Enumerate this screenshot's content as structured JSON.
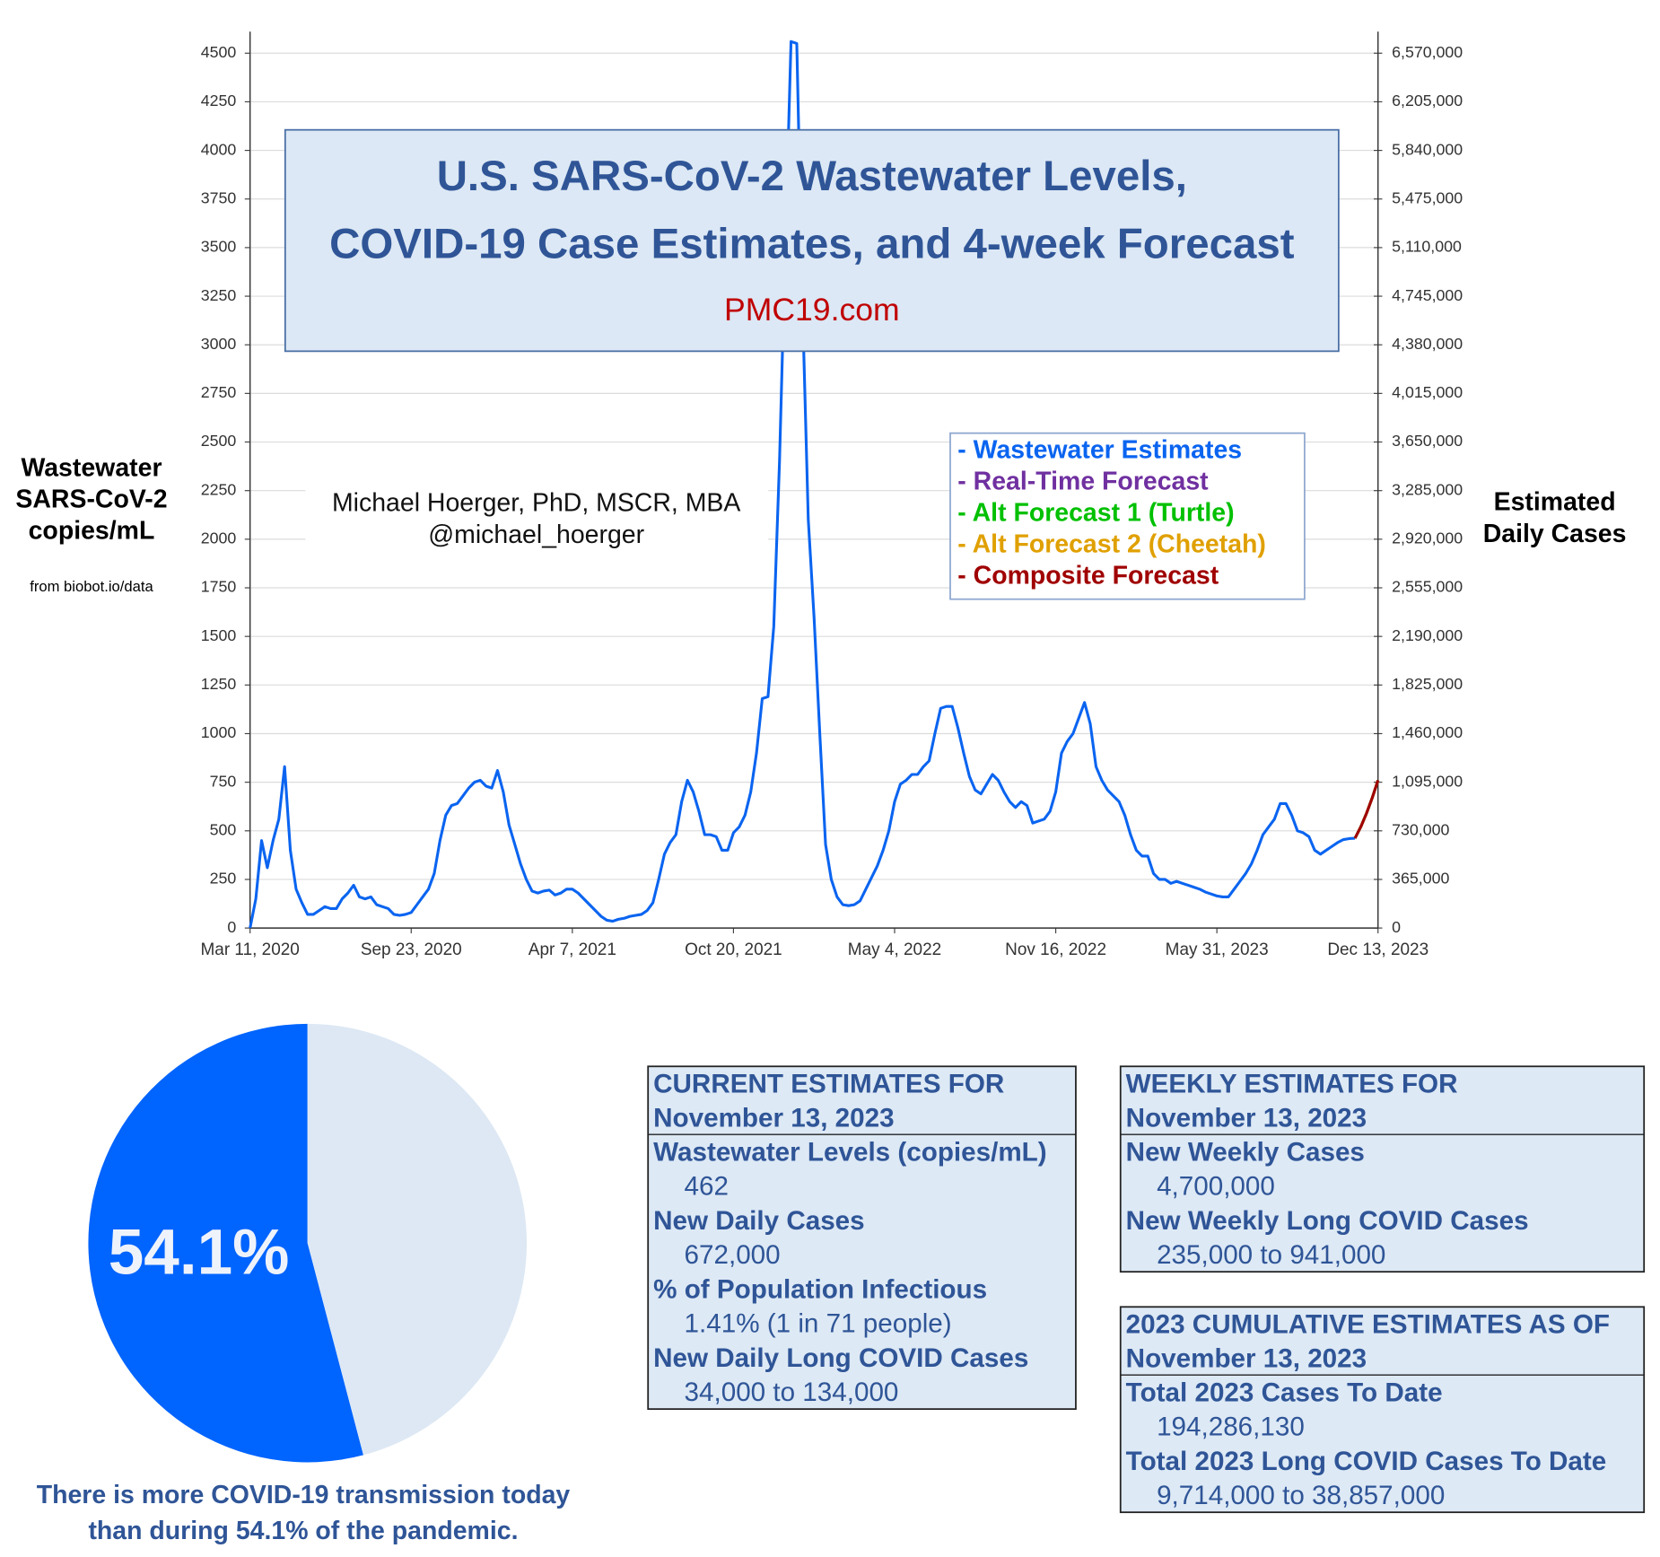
{
  "chart_data": [
    {
      "type": "line",
      "title": [
        "U.S. SARS-CoV-2 Wastewater Levels,",
        "COVID-19 Case Estimates, and 4-week Forecast"
      ],
      "subtitle": "PMC19.com",
      "y_label": [
        "Wastewater",
        "SARS-CoV-2",
        "copies/mL"
      ],
      "y2_label": [
        "Estimated",
        "Daily Cases"
      ],
      "source": "from biobot.io/data",
      "author": [
        "Michael Hoerger, PhD, MSCR, MBA",
        "@michael_hoerger"
      ],
      "x": [
        "2020-03-11",
        "2020-03-18",
        "2020-03-25",
        "2020-04-01",
        "2020-04-08",
        "2020-04-15",
        "2020-04-22",
        "2020-04-29",
        "2020-05-06",
        "2020-05-13",
        "2020-05-20",
        "2020-05-27",
        "2020-06-03",
        "2020-06-10",
        "2020-06-17",
        "2020-06-24",
        "2020-07-01",
        "2020-07-08",
        "2020-07-15",
        "2020-07-22",
        "2020-07-29",
        "2020-08-05",
        "2020-08-12",
        "2020-08-19",
        "2020-08-26",
        "2020-09-02",
        "2020-09-09",
        "2020-09-16",
        "2020-09-23",
        "2020-09-30",
        "2020-10-07",
        "2020-10-14",
        "2020-10-21",
        "2020-10-28",
        "2020-11-04",
        "2020-11-11",
        "2020-11-18",
        "2020-11-25",
        "2020-12-02",
        "2020-12-09",
        "2020-12-16",
        "2020-12-23",
        "2020-12-30",
        "2021-01-06",
        "2021-01-13",
        "2021-01-20",
        "2021-01-27",
        "2021-02-03",
        "2021-02-10",
        "2021-02-17",
        "2021-02-24",
        "2021-03-03",
        "2021-03-10",
        "2021-03-17",
        "2021-03-24",
        "2021-03-31",
        "2021-04-07",
        "2021-04-14",
        "2021-04-21",
        "2021-04-28",
        "2021-05-05",
        "2021-05-12",
        "2021-05-19",
        "2021-05-26",
        "2021-06-02",
        "2021-06-09",
        "2021-06-16",
        "2021-06-23",
        "2021-06-30",
        "2021-07-07",
        "2021-07-14",
        "2021-07-21",
        "2021-07-28",
        "2021-08-04",
        "2021-08-11",
        "2021-08-18",
        "2021-08-25",
        "2021-09-01",
        "2021-09-08",
        "2021-09-15",
        "2021-09-22",
        "2021-09-29",
        "2021-10-06",
        "2021-10-13",
        "2021-10-20",
        "2021-10-27",
        "2021-11-03",
        "2021-11-10",
        "2021-11-17",
        "2021-11-24",
        "2021-12-01",
        "2021-12-08",
        "2021-12-15",
        "2021-12-22",
        "2021-12-29",
        "2022-01-05",
        "2022-01-12",
        "2022-01-19",
        "2022-01-26",
        "2022-02-02",
        "2022-02-09",
        "2022-02-16",
        "2022-02-23",
        "2022-03-02",
        "2022-03-09",
        "2022-03-16",
        "2022-03-23",
        "2022-03-30",
        "2022-04-06",
        "2022-04-13",
        "2022-04-20",
        "2022-04-27",
        "2022-05-04",
        "2022-05-11",
        "2022-05-18",
        "2022-05-25",
        "2022-06-01",
        "2022-06-08",
        "2022-06-15",
        "2022-06-22",
        "2022-06-29",
        "2022-07-06",
        "2022-07-13",
        "2022-07-20",
        "2022-07-27",
        "2022-08-03",
        "2022-08-10",
        "2022-08-17",
        "2022-08-24",
        "2022-08-31",
        "2022-09-07",
        "2022-09-14",
        "2022-09-21",
        "2022-09-28",
        "2022-10-05",
        "2022-10-12",
        "2022-10-19",
        "2022-10-26",
        "2022-11-02",
        "2022-11-09",
        "2022-11-16",
        "2022-11-23",
        "2022-11-30",
        "2022-12-07",
        "2022-12-14",
        "2022-12-21",
        "2022-12-28",
        "2023-01-04",
        "2023-01-11",
        "2023-01-18",
        "2023-01-25",
        "2023-02-01",
        "2023-02-08",
        "2023-02-15",
        "2023-02-22",
        "2023-03-01",
        "2023-03-08",
        "2023-03-15",
        "2023-03-22",
        "2023-03-29",
        "2023-04-05",
        "2023-04-12",
        "2023-04-19",
        "2023-04-26",
        "2023-05-03",
        "2023-05-10",
        "2023-05-17",
        "2023-05-24",
        "2023-05-31",
        "2023-06-07",
        "2023-06-14",
        "2023-06-21",
        "2023-06-28",
        "2023-07-05",
        "2023-07-12",
        "2023-07-19",
        "2023-07-26",
        "2023-08-02",
        "2023-08-09",
        "2023-08-16",
        "2023-08-23",
        "2023-08-30",
        "2023-09-06",
        "2023-09-13",
        "2023-09-20",
        "2023-09-27",
        "2023-10-04",
        "2023-10-11",
        "2023-10-18",
        "2023-10-25",
        "2023-11-01",
        "2023-11-08",
        "2023-11-15",
        "2023-11-22",
        "2023-11-29",
        "2023-12-06",
        "2023-12-13"
      ],
      "series": [
        {
          "name": "- Wastewater Estimates",
          "color": "#0a64f0",
          "values": [
            0,
            150,
            450,
            310,
            450,
            560,
            830,
            400,
            200,
            130,
            70,
            70,
            90,
            110,
            100,
            100,
            150,
            180,
            220,
            160,
            150,
            160,
            120,
            110,
            100,
            70,
            65,
            70,
            80,
            120,
            160,
            200,
            280,
            450,
            580,
            630,
            640,
            680,
            720,
            750,
            760,
            730,
            720,
            810,
            700,
            530,
            430,
            330,
            250,
            190,
            180,
            190,
            195,
            170,
            180,
            200,
            200,
            180,
            150,
            120,
            90,
            60,
            40,
            35,
            45,
            50,
            60,
            65,
            70,
            90,
            130,
            250,
            380,
            440,
            480,
            650,
            760,
            700,
            600,
            480,
            480,
            470,
            400,
            400,
            490,
            520,
            580,
            700,
            900,
            1180,
            1190,
            1550,
            2400,
            3500,
            4560,
            4550,
            3200,
            2100,
            1600,
            1000,
            430,
            250,
            160,
            120,
            115,
            120,
            140,
            200,
            260,
            320,
            400,
            500,
            650,
            740,
            760,
            790,
            790,
            830,
            860,
            1000,
            1130,
            1140,
            1140,
            1030,
            900,
            780,
            710,
            690,
            740,
            790,
            760,
            700,
            650,
            620,
            650,
            630,
            540,
            550,
            560,
            600,
            700,
            900,
            960,
            1000,
            1080,
            1160,
            1050,
            830,
            760,
            710,
            680,
            650,
            580,
            480,
            400,
            370,
            370,
            280,
            250,
            250,
            230,
            240,
            230,
            220,
            210,
            200,
            185,
            175,
            165,
            160,
            160,
            200,
            240,
            280,
            330,
            400,
            480,
            520,
            560,
            640,
            640,
            580,
            500,
            490,
            470,
            400,
            380,
            400,
            420,
            440,
            455,
            460,
            462,
            null,
            null,
            null,
            null
          ]
        },
        {
          "name": "- Real-Time Forecast",
          "color": "#7030a0",
          "x": [
            "2023-11-15",
            "2023-11-22",
            "2023-11-29",
            "2023-12-06",
            "2023-12-13"
          ],
          "values": [
            462,
            520,
            590,
            670,
            760
          ]
        },
        {
          "name": "- Alt Forecast 1 (Turtle)",
          "color": "#00c000",
          "x": [
            "2023-11-15",
            "2023-11-22",
            "2023-11-29",
            "2023-12-06",
            "2023-12-13"
          ],
          "values": [
            462,
            520,
            590,
            670,
            760
          ]
        },
        {
          "name": "- Alt Forecast 2 (Cheetah)",
          "color": "#e0a000",
          "x": [
            "2023-11-15",
            "2023-11-22",
            "2023-11-29",
            "2023-12-06",
            "2023-12-13"
          ],
          "values": [
            462,
            520,
            590,
            670,
            760
          ]
        },
        {
          "name": "- Composite Forecast",
          "color": "#a00000",
          "x": [
            "2023-11-15",
            "2023-11-22",
            "2023-11-29",
            "2023-12-06",
            "2023-12-13"
          ],
          "values": [
            462,
            520,
            590,
            670,
            760
          ]
        }
      ],
      "xlim": [
        "2020-03-11",
        "2023-12-13"
      ],
      "xticks": [
        {
          "value": "2020-03-11",
          "label": "Mar 11, 2020"
        },
        {
          "value": "2020-09-23",
          "label": "Sep 23, 2020"
        },
        {
          "value": "2021-04-07",
          "label": "Apr 7, 2021"
        },
        {
          "value": "2021-10-20",
          "label": "Oct 20, 2021"
        },
        {
          "value": "2022-05-04",
          "label": "May 4, 2022"
        },
        {
          "value": "2022-11-16",
          "label": "Nov 16, 2022"
        },
        {
          "value": "2023-05-31",
          "label": "May 31, 2023"
        },
        {
          "value": "2023-12-13",
          "label": "Dec 13, 2023"
        }
      ],
      "ylim": [
        0,
        4600
      ],
      "yticks": [
        0,
        250,
        500,
        750,
        1000,
        1250,
        1500,
        1750,
        2000,
        2250,
        2500,
        2750,
        3000,
        3250,
        3500,
        3750,
        4000,
        4250,
        4500
      ],
      "y2lim": [
        0,
        6716000
      ],
      "y2ticks": [
        0,
        {
          "value": 365000,
          "label": "365,000"
        },
        {
          "value": 730000,
          "label": "730,000"
        },
        {
          "value": 1095000,
          "label": "1,095,000"
        },
        {
          "value": 1460000,
          "label": "1,460,000"
        },
        {
          "value": 1825000,
          "label": "1,825,000"
        },
        {
          "value": 2190000,
          "label": "2,190,000"
        },
        {
          "value": 2555000,
          "label": "2,555,000"
        },
        {
          "value": 2920000,
          "label": "2,920,000"
        },
        {
          "value": 3285000,
          "label": "3,285,000"
        },
        {
          "value": 3650000,
          "label": "3,650,000"
        },
        {
          "value": 4015000,
          "label": "4,015,000"
        },
        {
          "value": 4380000,
          "label": "4,380,000"
        },
        {
          "value": 4745000,
          "label": "4,745,000"
        },
        {
          "value": 5110000,
          "label": "5,110,000"
        },
        {
          "value": 5475000,
          "label": "5,475,000"
        },
        {
          "value": 5840000,
          "label": "5,840,000"
        },
        {
          "value": 6205000,
          "label": "6,205,000"
        },
        {
          "value": 6570000,
          "label": "6,570,000"
        }
      ],
      "grid": true,
      "legend": "upper right"
    },
    {
      "type": "pie",
      "values": [
        54.1,
        45.9
      ],
      "value_labels": [
        "54.1%",
        null
      ],
      "colors": [
        "#0064ff",
        "#dde8f4"
      ],
      "caption": [
        "There is more COVID-19 transmission today",
        "than during 54.1% of the pandemic."
      ]
    }
  ],
  "panels": [
    {
      "heading": [
        "CURRENT ESTIMATES FOR",
        "November 13, 2023"
      ],
      "items": [
        {
          "label": "Wastewater Levels (copies/mL)",
          "value": "462"
        },
        {
          "label": "New Daily Cases",
          "value": "672,000"
        },
        {
          "label": "% of Population Infectious",
          "value": "1.41% (1 in 71 people)"
        },
        {
          "label": "New Daily Long COVID Cases",
          "value": "34,000 to 134,000"
        }
      ]
    },
    {
      "heading": [
        "WEEKLY ESTIMATES FOR",
        "November 13, 2023"
      ],
      "items": [
        {
          "label": "New Weekly Cases",
          "value": "4,700,000"
        },
        {
          "label": "New Weekly Long COVID Cases",
          "value": "235,000 to 941,000"
        }
      ]
    },
    {
      "heading": [
        "2023 CUMULATIVE ESTIMATES AS OF",
        "November 13, 2023"
      ],
      "items": [
        {
          "label": "Total 2023 Cases To Date",
          "value": "194,286,130"
        },
        {
          "label": "Total 2023 Long COVID Cases To Date",
          "value": "9,714,000 to 38,857,000"
        }
      ]
    }
  ]
}
